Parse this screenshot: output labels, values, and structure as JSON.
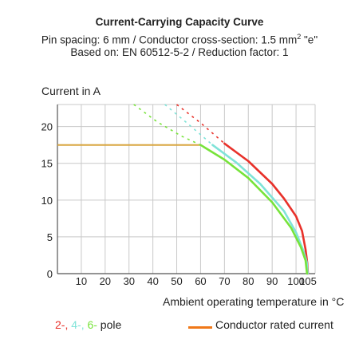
{
  "header": {
    "title": "Current-Carrying Capacity Curve",
    "subtitle_prefix": "Pin spacing: 6 mm / Conductor cross-section: 1.5 mm",
    "subtitle_sup": "2",
    "subtitle_suffix": " \"e\"",
    "basis": "Based on: EN 60512-5-2 / Reduction factor: 1"
  },
  "chart_data": {
    "type": "line",
    "title": "Current-Carrying Capacity Curve",
    "ylabel": "Current in A",
    "xlabel": "Ambient operating temperature in °C",
    "xlim": [
      0,
      108
    ],
    "ylim": [
      0,
      23
    ],
    "xticks": [
      10,
      20,
      30,
      40,
      50,
      60,
      70,
      80,
      90,
      100,
      105
    ],
    "yticks": [
      0,
      5,
      10,
      15,
      20
    ],
    "grid": true,
    "colors": {
      "pole2": "#e8312a",
      "pole4": "#7fe3d8",
      "pole6": "#77e33a",
      "rated": "#f07818",
      "grid": "#c8c8c8",
      "axis": "#555555"
    },
    "series": [
      {
        "name": "2-pole",
        "color": "#e8312a",
        "dashed": [
          [
            50,
            23
          ],
          [
            60,
            20.5
          ],
          [
            70,
            17.7
          ]
        ],
        "solid": [
          [
            70,
            17.7
          ],
          [
            80,
            15.3
          ],
          [
            90,
            12.2
          ],
          [
            95,
            10.2
          ],
          [
            100,
            7.8
          ],
          [
            102.5,
            5.8
          ],
          [
            104,
            3.3
          ],
          [
            104.7,
            1.5
          ],
          [
            105,
            0
          ]
        ]
      },
      {
        "name": "4-pole",
        "color": "#7fe3d8",
        "dashed": [
          [
            45,
            23
          ],
          [
            55,
            20.3
          ],
          [
            65,
            17.5
          ]
        ],
        "solid": [
          [
            65,
            17.5
          ],
          [
            75,
            15.1
          ],
          [
            85,
            12.2
          ],
          [
            95,
            8.5
          ],
          [
            100,
            5.6
          ],
          [
            103,
            3.2
          ],
          [
            104.5,
            1.6
          ],
          [
            104.9,
            0
          ]
        ]
      },
      {
        "name": "6-pole",
        "color": "#77e33a",
        "dashed": [
          [
            32,
            23
          ],
          [
            42,
            20.6
          ],
          [
            52,
            18.7
          ],
          [
            60,
            17.5
          ]
        ],
        "solid": [
          [
            60,
            17.5
          ],
          [
            70,
            15.5
          ],
          [
            80,
            13
          ],
          [
            90,
            9.7
          ],
          [
            98,
            6.2
          ],
          [
            102,
            3.6
          ],
          [
            104,
            1.8
          ],
          [
            104.6,
            0
          ]
        ]
      }
    ],
    "rated_current": {
      "name": "Conductor rated current",
      "value": 17.5,
      "x_end": 60,
      "color": "#d8a640"
    }
  },
  "legend": {
    "left_parts": [
      {
        "text": "2-",
        "color": "#e8312a"
      },
      {
        "text": ", ",
        "color": "#e8312a"
      },
      {
        "text": "4-",
        "color": "#7fe3d8"
      },
      {
        "text": ", ",
        "color": "#7fe3d8"
      },
      {
        "text": "6-",
        "color": "#77e33a"
      },
      {
        "text": " pole",
        "color": "#222222"
      }
    ],
    "right_label": "Conductor rated current",
    "right_color": "#f07818"
  }
}
